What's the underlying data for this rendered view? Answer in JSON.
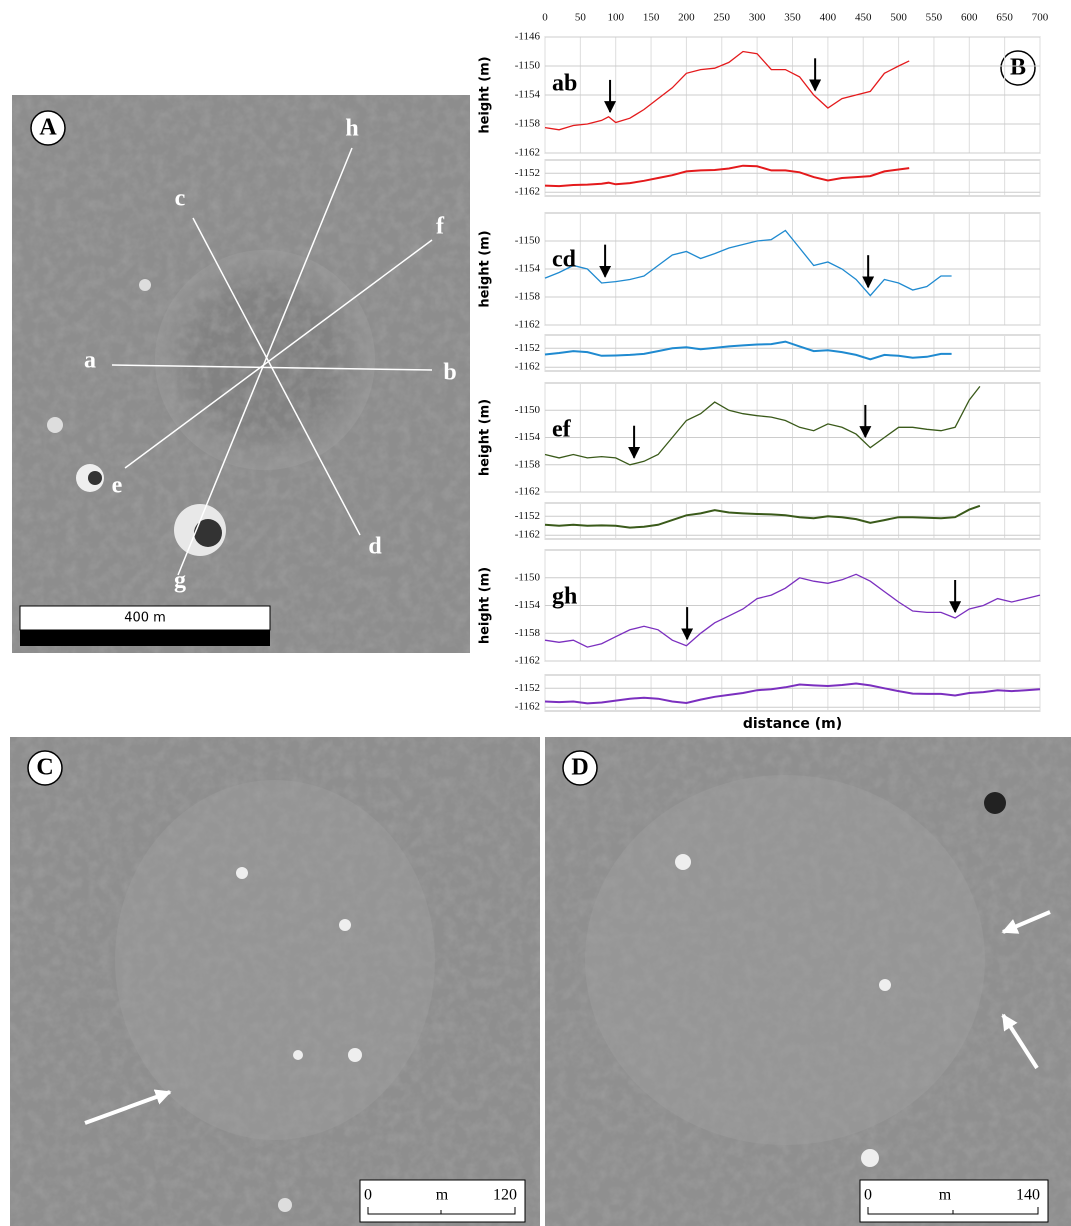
{
  "panels": {
    "A": {
      "label": "A",
      "points": [
        "a",
        "b",
        "c",
        "d",
        "e",
        "f",
        "g",
        "h"
      ],
      "scale": "400 m"
    },
    "B": {
      "label": "B"
    },
    "C": {
      "label": "C",
      "scale": [
        "0",
        "m",
        "120"
      ]
    },
    "D": {
      "label": "D",
      "scale": [
        "0",
        "m",
        "140"
      ]
    }
  },
  "chart_data": [
    {
      "type": "line",
      "label": "ab",
      "ylabel": "height (m)",
      "xlim": [
        0,
        700
      ],
      "xticks": [
        0,
        50,
        100,
        150,
        200,
        250,
        300,
        350,
        400,
        450,
        500,
        550,
        600,
        650,
        700
      ],
      "ylim": [
        -1162,
        -1146
      ],
      "yticks": [
        -1162,
        -1158,
        -1154,
        -1150,
        -1146
      ],
      "inset_ylim": [
        -1164,
        -1145
      ],
      "inset_yticks": [
        -1162,
        -1152
      ],
      "arrows": [
        92,
        382
      ],
      "x": [
        0,
        20,
        40,
        60,
        80,
        90,
        100,
        120,
        140,
        160,
        180,
        200,
        220,
        240,
        260,
        280,
        300,
        320,
        340,
        360,
        380,
        400,
        420,
        440,
        460,
        480,
        500,
        515
      ],
      "series": [
        {
          "color": "#e41a1c",
          "values": [
            -1158.5,
            -1158.8,
            -1158.2,
            -1158,
            -1157.5,
            -1157,
            -1157.8,
            -1157.2,
            -1156,
            -1154.5,
            -1153,
            -1151,
            -1150.5,
            -1150.3,
            -1149.5,
            -1148,
            -1148.3,
            -1150.5,
            -1150.5,
            -1151.5,
            -1154,
            -1155.8,
            -1154.5,
            -1154,
            -1153.5,
            -1151,
            -1150,
            -1149.3
          ]
        }
      ]
    },
    {
      "type": "line",
      "label": "cd",
      "ylabel": "height (m)",
      "xlim": [
        0,
        700
      ],
      "ylim": [
        -1162,
        -1146
      ],
      "yticks": [
        -1162,
        -1158,
        -1154,
        -1150
      ],
      "inset_ylim": [
        -1164,
        -1145
      ],
      "inset_yticks": [
        -1162,
        -1152
      ],
      "arrows": [
        85,
        457
      ],
      "x": [
        0,
        20,
        40,
        60,
        80,
        100,
        120,
        140,
        160,
        180,
        200,
        220,
        240,
        260,
        280,
        300,
        320,
        340,
        360,
        380,
        400,
        420,
        440,
        460,
        480,
        500,
        520,
        540,
        560,
        575
      ],
      "series": [
        {
          "color": "#1f8ad0",
          "values": [
            -1155.3,
            -1154.5,
            -1153.5,
            -1154,
            -1156,
            -1155.8,
            -1155.5,
            -1155,
            -1153.5,
            -1152,
            -1151.5,
            -1152.5,
            -1151.8,
            -1151,
            -1150.5,
            -1150,
            -1149.8,
            -1148.5,
            -1151,
            -1153.5,
            -1153,
            -1154,
            -1155.5,
            -1157.8,
            -1155.5,
            -1156,
            -1157,
            -1156.5,
            -1155,
            -1155
          ]
        }
      ]
    },
    {
      "type": "line",
      "label": "ef",
      "ylabel": "height (m)",
      "xlim": [
        0,
        700
      ],
      "ylim": [
        -1162,
        -1146
      ],
      "yticks": [
        -1162,
        -1158,
        -1154,
        -1150
      ],
      "inset_ylim": [
        -1164,
        -1145
      ],
      "inset_yticks": [
        -1162,
        -1152
      ],
      "arrows": [
        126,
        453
      ],
      "x": [
        0,
        20,
        40,
        60,
        80,
        100,
        120,
        140,
        160,
        180,
        200,
        220,
        240,
        260,
        280,
        300,
        320,
        340,
        360,
        380,
        400,
        420,
        440,
        460,
        480,
        500,
        520,
        540,
        560,
        580,
        600,
        615
      ],
      "series": [
        {
          "color": "#3a5a1a",
          "values": [
            -1156.5,
            -1157,
            -1156.5,
            -1157,
            -1156.8,
            -1157,
            -1158,
            -1157.5,
            -1156.5,
            -1154,
            -1151.5,
            -1150.5,
            -1148.8,
            -1150,
            -1150.5,
            -1150.8,
            -1151,
            -1151.5,
            -1152.5,
            -1153,
            -1152,
            -1152.5,
            -1153.5,
            -1155.5,
            -1154,
            -1152.5,
            -1152.5,
            -1152.8,
            -1153,
            -1152.5,
            -1148.5,
            -1146.5
          ]
        }
      ]
    },
    {
      "type": "line",
      "label": "gh",
      "ylabel": "height (m)",
      "xlabel": "distance (m)",
      "xlim": [
        0,
        700
      ],
      "ylim": [
        -1162,
        -1146
      ],
      "yticks": [
        -1162,
        -1158,
        -1154,
        -1150
      ],
      "inset_ylim": [
        -1164,
        -1145
      ],
      "inset_yticks": [
        -1162,
        -1152
      ],
      "arrows": [
        201,
        580
      ],
      "x": [
        0,
        20,
        40,
        60,
        80,
        100,
        120,
        140,
        160,
        180,
        200,
        220,
        240,
        260,
        280,
        300,
        320,
        340,
        360,
        380,
        400,
        420,
        440,
        460,
        480,
        500,
        520,
        540,
        560,
        580,
        600,
        620,
        640,
        660,
        680,
        700
      ],
      "series": [
        {
          "color": "#7b2fbf",
          "values": [
            -1159,
            -1159.3,
            -1159,
            -1160,
            -1159.5,
            -1158.5,
            -1157.5,
            -1157,
            -1157.5,
            -1159,
            -1159.8,
            -1158,
            -1156.5,
            -1155.5,
            -1154.5,
            -1153,
            -1152.5,
            -1151.5,
            -1150,
            -1150.5,
            -1150.8,
            -1150.3,
            -1149.5,
            -1150.5,
            -1152,
            -1153.5,
            -1154.8,
            -1155,
            -1155,
            -1155.8,
            -1154.5,
            -1154,
            -1153,
            -1153.5,
            -1153,
            -1152.5
          ]
        }
      ]
    }
  ]
}
